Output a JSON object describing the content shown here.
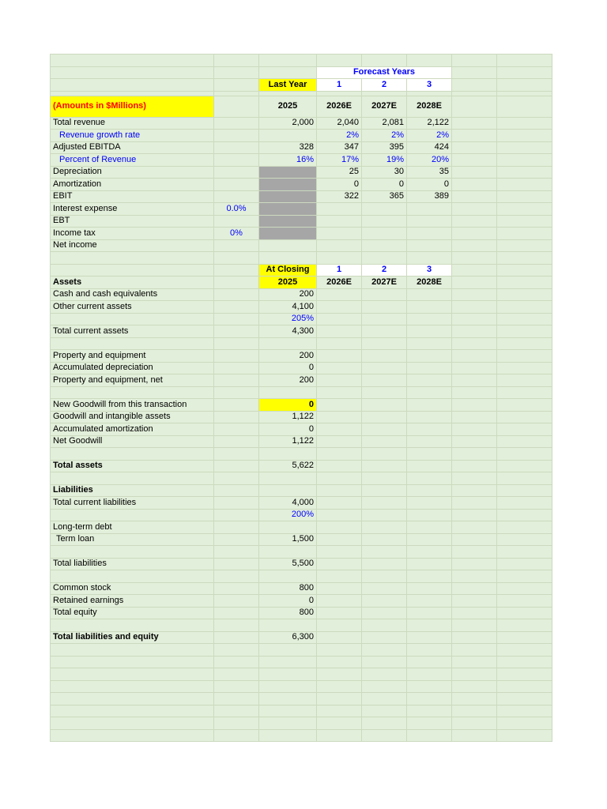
{
  "sheet": {
    "palette": {
      "sheet_background": "#e2efda",
      "grid_line": "#ccdabf",
      "highlight_yellow": "#ffff00",
      "input_gray": "#a6a6a6",
      "text_blue": "#0000ff",
      "text_red": "#ff0000",
      "header_white": "#ffffff"
    },
    "columns": [
      {
        "letter": "A"
      },
      {
        "letter": "B"
      },
      {
        "letter": "C"
      },
      {
        "letter": "D"
      },
      {
        "letter": "E"
      },
      {
        "letter": "F"
      },
      {
        "letter": "G"
      },
      {
        "letter": "H"
      }
    ],
    "rows": [
      {
        "name": "blank-top"
      },
      {
        "name": "forecast-years-header",
        "cells": [
          {
            "col": 3,
            "span": 3,
            "text": "Forecast Years",
            "cls": "white blue bold center"
          }
        ]
      },
      {
        "name": "column-headers",
        "cells": [
          {
            "col": 2,
            "text": "Last Year",
            "cls": "yellow bold center"
          },
          {
            "col": 3,
            "text": "1",
            "cls": "white blue bold center"
          },
          {
            "col": 4,
            "text": "2",
            "cls": "white blue bold center"
          },
          {
            "col": 5,
            "text": "3",
            "cls": "white blue bold center"
          }
        ]
      },
      {
        "name": "spacer-thin",
        "h": 6
      },
      {
        "name": "amounts-and-years",
        "h": 27,
        "cells": [
          {
            "col": 0,
            "text": "(Amounts in $Millions)",
            "cls": "yellow red bold"
          },
          {
            "col": 2,
            "text": "2025",
            "cls": "bold center"
          },
          {
            "col": 3,
            "text": "2026E",
            "cls": "bold center"
          },
          {
            "col": 4,
            "text": "2027E",
            "cls": "bold center"
          },
          {
            "col": 5,
            "text": "2028E",
            "cls": "bold center"
          }
        ]
      },
      {
        "name": "total-revenue",
        "cells": [
          {
            "col": 0,
            "text": "Total revenue"
          },
          {
            "col": 2,
            "text": "2,000",
            "cls": "right"
          },
          {
            "col": 3,
            "text": "2,040",
            "cls": "right"
          },
          {
            "col": 4,
            "text": "2,081",
            "cls": "right"
          },
          {
            "col": 5,
            "text": "2,122",
            "cls": "right"
          }
        ]
      },
      {
        "name": "revenue-growth-rate",
        "cells": [
          {
            "col": 0,
            "text": "Revenue growth rate",
            "cls": "blue indent2"
          },
          {
            "col": 3,
            "text": "2%",
            "cls": "blue right"
          },
          {
            "col": 4,
            "text": "2%",
            "cls": "blue right"
          },
          {
            "col": 5,
            "text": "2%",
            "cls": "blue right"
          }
        ]
      },
      {
        "name": "adjusted-ebitda",
        "cells": [
          {
            "col": 0,
            "text": "Adjusted EBITDA"
          },
          {
            "col": 2,
            "text": "328",
            "cls": "right"
          },
          {
            "col": 3,
            "text": "347",
            "cls": "right"
          },
          {
            "col": 4,
            "text": "395",
            "cls": "right"
          },
          {
            "col": 5,
            "text": "424",
            "cls": "right"
          }
        ]
      },
      {
        "name": "percent-of-revenue",
        "cells": [
          {
            "col": 0,
            "text": "Percent of Revenue",
            "cls": "blue indent2"
          },
          {
            "col": 2,
            "text": "16%",
            "cls": "blue right"
          },
          {
            "col": 3,
            "text": "17%",
            "cls": "blue right"
          },
          {
            "col": 4,
            "text": "19%",
            "cls": "blue right"
          },
          {
            "col": 5,
            "text": "20%",
            "cls": "blue right"
          }
        ]
      },
      {
        "name": "depreciation",
        "cells": [
          {
            "col": 0,
            "text": "Depreciation"
          },
          {
            "col": 2,
            "text": "",
            "cls": "gray"
          },
          {
            "col": 3,
            "text": "25",
            "cls": "right"
          },
          {
            "col": 4,
            "text": "30",
            "cls": "right"
          },
          {
            "col": 5,
            "text": "35",
            "cls": "right"
          }
        ]
      },
      {
        "name": "amortization",
        "cells": [
          {
            "col": 0,
            "text": "Amortization"
          },
          {
            "col": 2,
            "text": "",
            "cls": "gray"
          },
          {
            "col": 3,
            "text": "0",
            "cls": "right"
          },
          {
            "col": 4,
            "text": "0",
            "cls": "right"
          },
          {
            "col": 5,
            "text": "0",
            "cls": "right"
          }
        ]
      },
      {
        "name": "ebit",
        "cells": [
          {
            "col": 0,
            "text": "EBIT"
          },
          {
            "col": 2,
            "text": "",
            "cls": "gray"
          },
          {
            "col": 3,
            "text": "322",
            "cls": "right"
          },
          {
            "col": 4,
            "text": "365",
            "cls": "right"
          },
          {
            "col": 5,
            "text": "389",
            "cls": "right"
          }
        ]
      },
      {
        "name": "interest-expense",
        "cells": [
          {
            "col": 0,
            "text": "Interest expense"
          },
          {
            "col": 1,
            "text": "0.0%",
            "cls": "blue center"
          },
          {
            "col": 2,
            "text": "",
            "cls": "gray"
          }
        ]
      },
      {
        "name": "ebt",
        "cells": [
          {
            "col": 0,
            "text": "EBT"
          },
          {
            "col": 2,
            "text": "",
            "cls": "gray"
          }
        ]
      },
      {
        "name": "income-tax",
        "cells": [
          {
            "col": 0,
            "text": "Income tax"
          },
          {
            "col": 1,
            "text": "0%",
            "cls": "blue center"
          },
          {
            "col": 2,
            "text": "",
            "cls": "gray"
          }
        ]
      },
      {
        "name": "net-income",
        "cells": [
          {
            "col": 0,
            "text": "Net income"
          }
        ]
      },
      {
        "name": "blank"
      },
      {
        "name": "at-closing-header",
        "cells": [
          {
            "col": 2,
            "text": "At Closing",
            "cls": "yellow bold center"
          },
          {
            "col": 3,
            "text": "1",
            "cls": "white blue bold center"
          },
          {
            "col": 4,
            "text": "2",
            "cls": "white blue bold center"
          },
          {
            "col": 5,
            "text": "3",
            "cls": "white blue bold center"
          }
        ]
      },
      {
        "name": "assets-header",
        "cells": [
          {
            "col": 0,
            "text": "Assets",
            "cls": "bold"
          },
          {
            "col": 2,
            "text": "2025",
            "cls": "yellow bold center"
          },
          {
            "col": 3,
            "text": "2026E",
            "cls": "bold center"
          },
          {
            "col": 4,
            "text": "2027E",
            "cls": "bold center"
          },
          {
            "col": 5,
            "text": "2028E",
            "cls": "bold center"
          }
        ]
      },
      {
        "name": "cash-and-equivalents",
        "cells": [
          {
            "col": 0,
            "text": "Cash and cash equivalents"
          },
          {
            "col": 2,
            "text": "200",
            "cls": "right"
          }
        ]
      },
      {
        "name": "other-current-assets",
        "cells": [
          {
            "col": 0,
            "text": "Other current assets"
          },
          {
            "col": 2,
            "text": "4,100",
            "cls": "right"
          }
        ]
      },
      {
        "name": "other-current-assets-pct",
        "cells": [
          {
            "col": 2,
            "text": "205%",
            "cls": "blue right"
          }
        ]
      },
      {
        "name": "total-current-assets",
        "cells": [
          {
            "col": 0,
            "text": "Total current assets"
          },
          {
            "col": 2,
            "text": "4,300",
            "cls": "right"
          }
        ]
      },
      {
        "name": "blank"
      },
      {
        "name": "property-and-equipment",
        "cells": [
          {
            "col": 0,
            "text": "Property and equipment"
          },
          {
            "col": 2,
            "text": "200",
            "cls": "right"
          }
        ]
      },
      {
        "name": "accumulated-depreciation",
        "cells": [
          {
            "col": 0,
            "text": "Accumulated depreciation"
          },
          {
            "col": 2,
            "text": "0",
            "cls": "right"
          }
        ]
      },
      {
        "name": "property-and-equipment-net",
        "cells": [
          {
            "col": 0,
            "text": "Property and equipment, net"
          },
          {
            "col": 2,
            "text": "200",
            "cls": "right"
          }
        ]
      },
      {
        "name": "blank"
      },
      {
        "name": "new-goodwill",
        "cells": [
          {
            "col": 0,
            "text": "New Goodwill from this transaction"
          },
          {
            "col": 2,
            "text": "0",
            "cls": "yellow bold right"
          }
        ]
      },
      {
        "name": "goodwill-and-intangibles",
        "cells": [
          {
            "col": 0,
            "text": "Goodwill and intangible assets"
          },
          {
            "col": 2,
            "text": "1,122",
            "cls": "right"
          }
        ]
      },
      {
        "name": "accumulated-amortization",
        "cells": [
          {
            "col": 0,
            "text": "Accumulated amortization"
          },
          {
            "col": 2,
            "text": "0",
            "cls": "right"
          }
        ]
      },
      {
        "name": "net-goodwill",
        "cells": [
          {
            "col": 0,
            "text": "Net Goodwill"
          },
          {
            "col": 2,
            "text": "1,122",
            "cls": "right"
          }
        ]
      },
      {
        "name": "blank"
      },
      {
        "name": "total-assets",
        "cells": [
          {
            "col": 0,
            "text": "Total assets",
            "cls": "bold"
          },
          {
            "col": 2,
            "text": "5,622",
            "cls": "right"
          }
        ]
      },
      {
        "name": "blank"
      },
      {
        "name": "liabilities-header",
        "cells": [
          {
            "col": 0,
            "text": "Liabilities",
            "cls": "bold"
          }
        ]
      },
      {
        "name": "total-current-liabilities",
        "cells": [
          {
            "col": 0,
            "text": "Total current liabilities"
          },
          {
            "col": 2,
            "text": "4,000",
            "cls": "right"
          }
        ]
      },
      {
        "name": "current-liabilities-pct",
        "cells": [
          {
            "col": 2,
            "text": "200%",
            "cls": "blue right"
          }
        ]
      },
      {
        "name": "long-term-debt",
        "cells": [
          {
            "col": 0,
            "text": "Long-term debt"
          }
        ]
      },
      {
        "name": "term-loan",
        "cells": [
          {
            "col": 0,
            "text": "Term loan",
            "cls": "indent1"
          },
          {
            "col": 2,
            "text": "1,500",
            "cls": "right"
          }
        ]
      },
      {
        "name": "blank"
      },
      {
        "name": "total-liabilities",
        "cells": [
          {
            "col": 0,
            "text": "Total liabilities"
          },
          {
            "col": 2,
            "text": "5,500",
            "cls": "right"
          }
        ]
      },
      {
        "name": "blank"
      },
      {
        "name": "common-stock",
        "cells": [
          {
            "col": 0,
            "text": "Common stock"
          },
          {
            "col": 2,
            "text": "800",
            "cls": "right"
          }
        ]
      },
      {
        "name": "retained-earnings",
        "cells": [
          {
            "col": 0,
            "text": "Retained earnings"
          },
          {
            "col": 2,
            "text": "0",
            "cls": "right"
          }
        ]
      },
      {
        "name": "total-equity",
        "cells": [
          {
            "col": 0,
            "text": "Total equity"
          },
          {
            "col": 2,
            "text": "800",
            "cls": "right"
          }
        ]
      },
      {
        "name": "blank"
      },
      {
        "name": "total-liabilities-and-equity",
        "cells": [
          {
            "col": 0,
            "text": "Total liabilities and equity",
            "cls": "bold"
          },
          {
            "col": 2,
            "text": "6,300",
            "cls": "right"
          }
        ]
      },
      {
        "name": "blank"
      },
      {
        "name": "blank"
      },
      {
        "name": "blank"
      },
      {
        "name": "blank"
      },
      {
        "name": "blank"
      },
      {
        "name": "blank"
      },
      {
        "name": "blank"
      },
      {
        "name": "blank"
      }
    ]
  }
}
